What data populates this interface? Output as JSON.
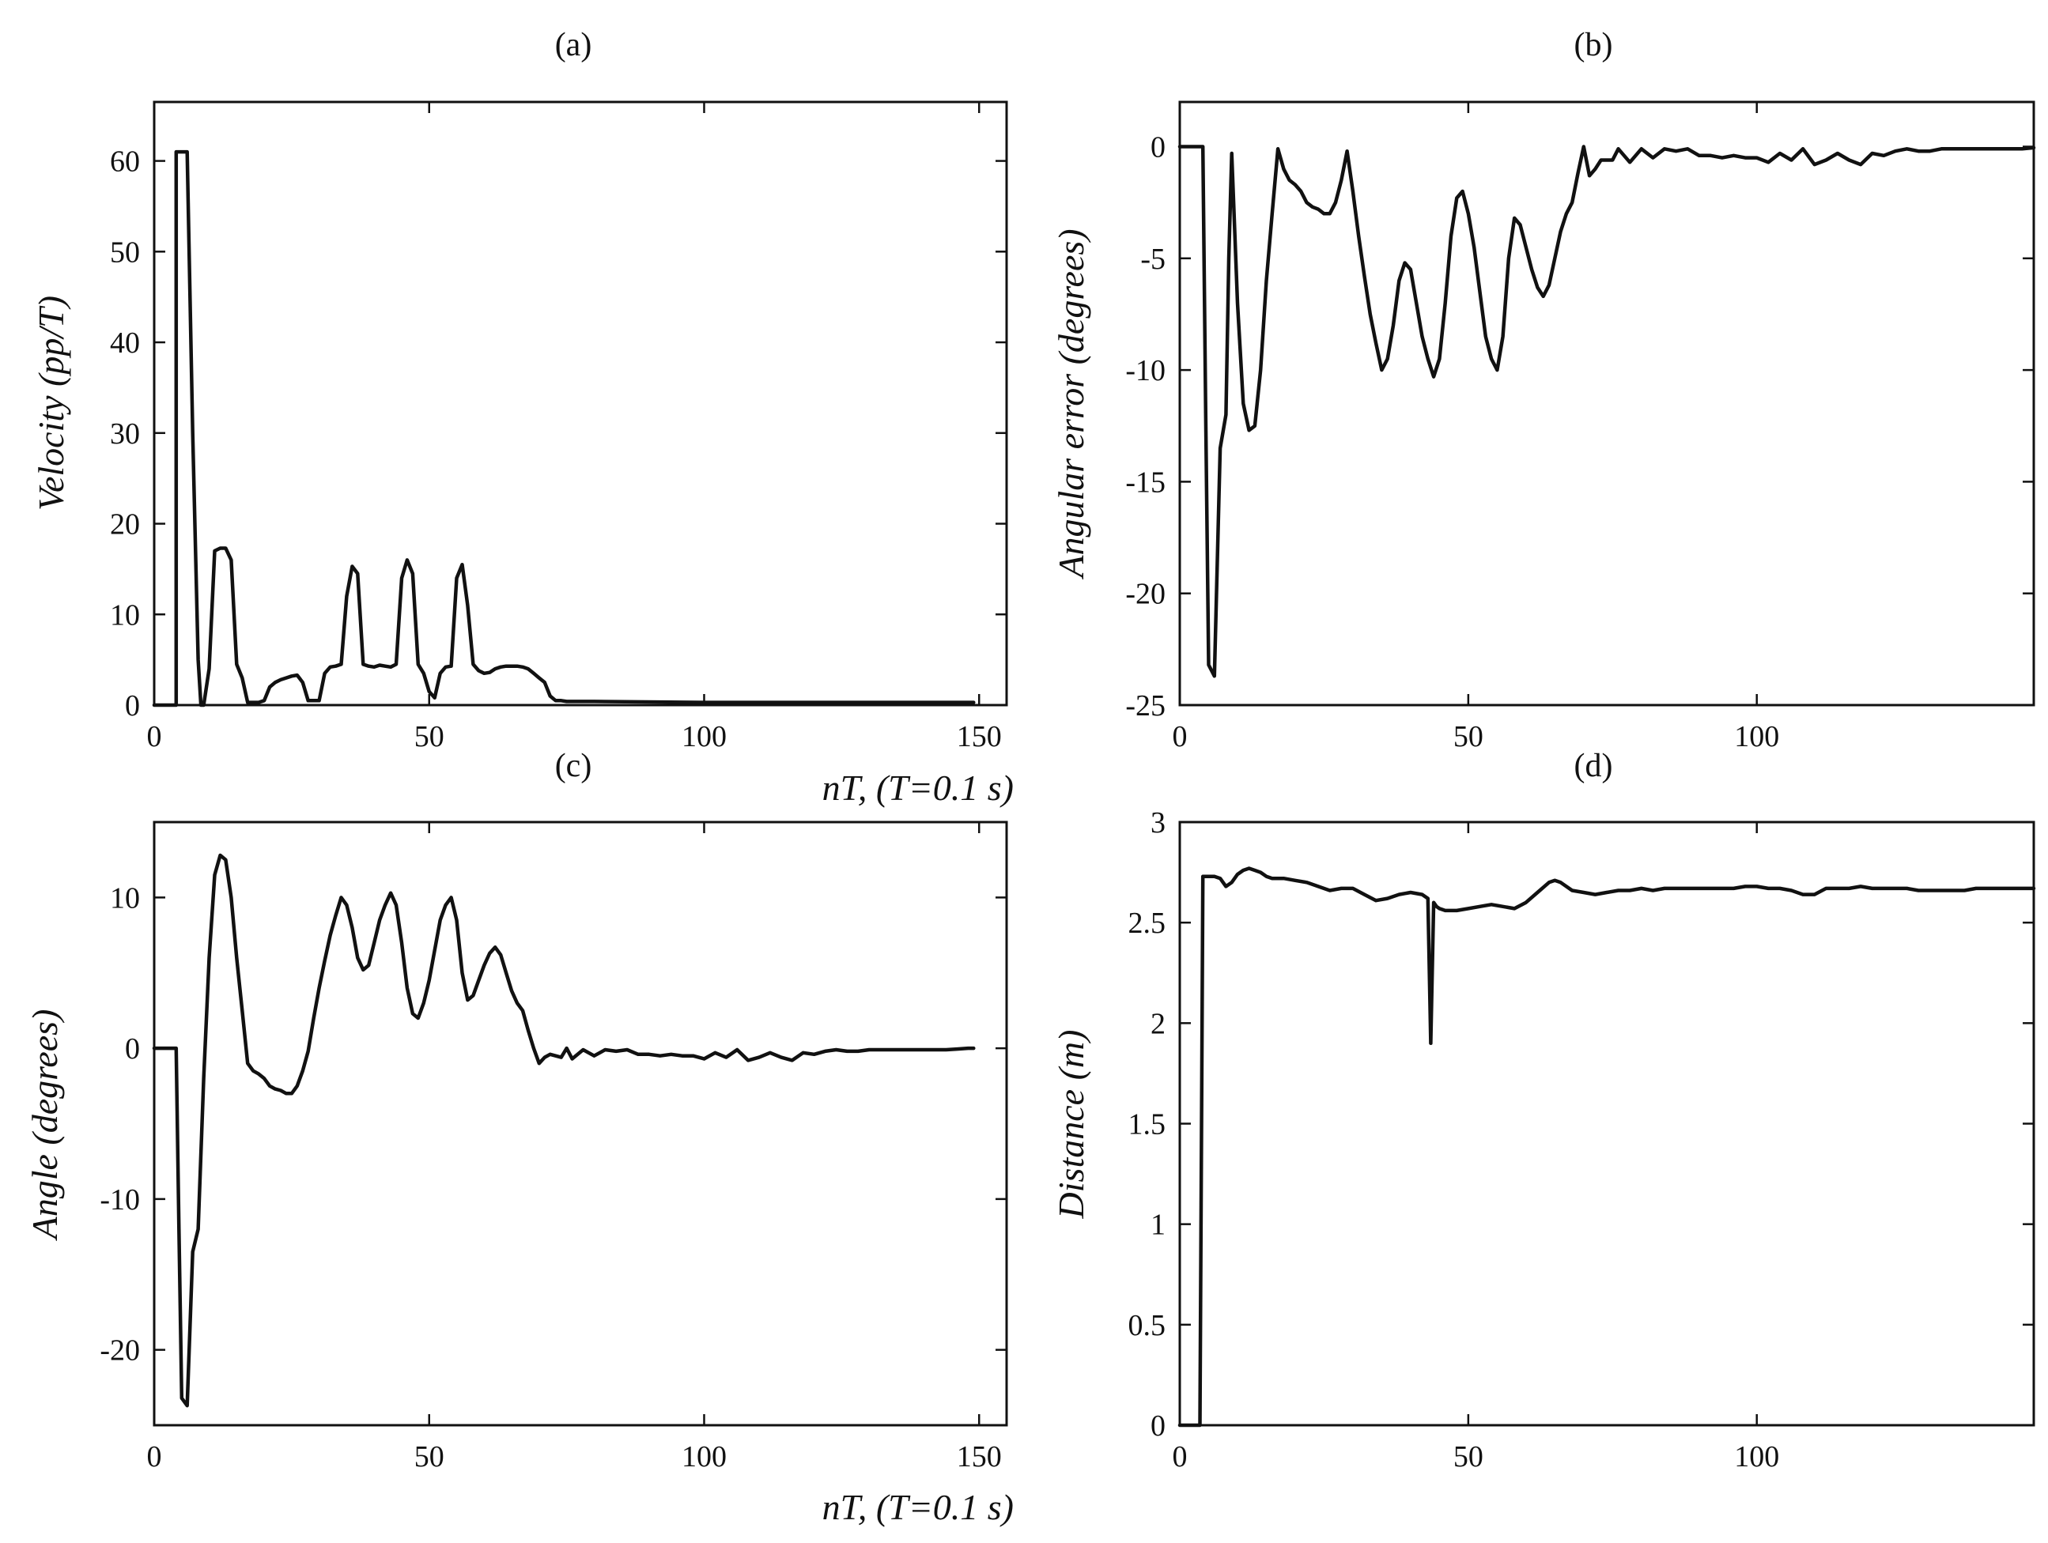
{
  "chart_data": [
    {
      "panel": "a",
      "type": "line",
      "title": "(a)",
      "xlabel": "nT, (T=0.1 s)",
      "ylabel": "Velocity (pp/T)",
      "xlim": [
        0,
        155
      ],
      "ylim": [
        0,
        66.5
      ],
      "xticks": [
        0,
        50,
        100,
        150
      ],
      "yticks": [
        0,
        10,
        20,
        30,
        40,
        50,
        60
      ],
      "grid": false,
      "line_color": "#111111",
      "x": [
        0,
        4,
        4,
        5,
        6,
        7,
        8,
        8.5,
        9,
        10,
        11,
        12,
        13,
        14,
        15,
        16,
        17,
        18,
        19,
        20,
        21,
        22,
        23,
        24,
        25,
        26,
        27,
        28,
        29,
        30,
        31,
        32,
        33,
        34,
        35,
        36,
        37,
        38,
        39,
        40,
        41,
        42,
        43,
        44,
        45,
        46,
        47,
        48,
        49,
        50,
        51,
        52,
        53,
        54,
        55,
        56,
        57,
        58,
        59,
        60,
        61,
        62,
        63,
        64,
        65,
        66,
        67,
        68,
        69,
        70,
        71,
        72,
        73,
        74,
        75,
        80,
        100,
        120,
        140,
        149
      ],
      "values": [
        0,
        0,
        61,
        61,
        61,
        30,
        5,
        0,
        0,
        4,
        17,
        17.3,
        17.3,
        16,
        4.5,
        3,
        0.3,
        0.3,
        0.3,
        0.5,
        2,
        2.5,
        2.8,
        3,
        3.2,
        3.3,
        2.5,
        0.5,
        0.5,
        0.5,
        3.5,
        4.2,
        4.3,
        4.5,
        12,
        15.3,
        14.5,
        4.5,
        4.3,
        4.2,
        4.4,
        4.3,
        4.2,
        4.5,
        14,
        16,
        14.5,
        4.5,
        3.5,
        1.5,
        0.8,
        3.5,
        4.2,
        4.3,
        14,
        15.5,
        11,
        4.5,
        3.8,
        3.5,
        3.6,
        4,
        4.2,
        4.3,
        4.3,
        4.3,
        4.2,
        4,
        3.5,
        3,
        2.5,
        1,
        0.5,
        0.5,
        0.4,
        0.4,
        0.3,
        0.3,
        0.3,
        0.3
      ]
    },
    {
      "panel": "b",
      "type": "line",
      "title": "(b)",
      "xlabel": "",
      "ylabel": "Angular error (degrees)",
      "xlim": [
        0,
        148
      ],
      "ylim": [
        -25,
        2
      ],
      "xticks": [
        0,
        50,
        100
      ],
      "yticks": [
        0,
        -5,
        -10,
        -15,
        -20,
        -25
      ],
      "grid": false,
      "line_color": "#111111",
      "x": [
        0,
        4,
        4.5,
        5,
        6,
        7,
        8,
        8.5,
        9,
        10,
        11,
        12,
        13,
        14,
        15,
        16,
        17,
        18,
        19,
        20,
        21,
        22,
        23,
        24,
        25,
        26,
        27,
        28,
        29,
        30,
        31,
        32,
        33,
        34,
        35,
        36,
        37,
        38,
        39,
        40,
        41,
        42,
        43,
        44,
        45,
        46,
        47,
        48,
        49,
        50,
        51,
        52,
        53,
        54,
        55,
        56,
        57,
        58,
        59,
        60,
        61,
        62,
        63,
        64,
        65,
        66,
        67,
        68,
        69,
        70,
        71,
        72,
        73,
        74,
        75,
        76,
        78,
        80,
        82,
        84,
        86,
        88,
        90,
        92,
        94,
        96,
        98,
        100,
        102,
        104,
        106,
        108,
        110,
        112,
        114,
        116,
        118,
        120,
        122,
        124,
        126,
        128,
        130,
        132,
        134,
        136,
        138,
        140,
        142,
        144,
        146,
        148
      ],
      "values": [
        0,
        0,
        -12,
        -23.2,
        -23.7,
        -13.5,
        -12,
        -5,
        -0.3,
        -7,
        -11.5,
        -12.7,
        -12.5,
        -10,
        -6,
        -3,
        -0.1,
        -1,
        -1.5,
        -1.7,
        -2,
        -2.5,
        -2.7,
        -2.8,
        -3,
        -3,
        -2.5,
        -1.5,
        -0.2,
        -2,
        -4,
        -5.8,
        -7.5,
        -8.8,
        -10,
        -9.5,
        -8,
        -6,
        -5.2,
        -5.5,
        -7,
        -8.5,
        -9.5,
        -10.3,
        -9.5,
        -7,
        -4,
        -2.3,
        -2,
        -3,
        -4.5,
        -6.5,
        -8.5,
        -9.5,
        -10,
        -8.5,
        -5,
        -3.2,
        -3.5,
        -4.5,
        -5.5,
        -6.3,
        -6.7,
        -6.2,
        -5,
        -3.8,
        -3,
        -2.5,
        -1.2,
        0,
        -1.3,
        -1,
        -0.6,
        -0.6,
        -0.6,
        -0.1,
        -0.7,
        -0.1,
        -0.5,
        -0.1,
        -0.2,
        -0.1,
        -0.4,
        -0.4,
        -0.5,
        -0.4,
        -0.5,
        -0.5,
        -0.7,
        -0.3,
        -0.6,
        -0.1,
        -0.8,
        -0.6,
        -0.3,
        -0.6,
        -0.8,
        -0.3,
        -0.4,
        -0.2,
        -0.1,
        -0.2,
        -0.2,
        -0.1,
        -0.1,
        -0.1,
        -0.1,
        -0.1,
        -0.1,
        -0.1,
        -0.1,
        -0.05
      ]
    },
    {
      "panel": "c",
      "type": "line",
      "title": "(c)",
      "xlabel": "nT, (T=0.1 s)",
      "ylabel": "Angle (degrees)",
      "xlim": [
        0,
        155
      ],
      "ylim": [
        -25,
        15
      ],
      "xticks": [
        0,
        50,
        100,
        150
      ],
      "yticks": [
        10,
        0,
        -10,
        -20
      ],
      "grid": false,
      "line_color": "#111111",
      "x": [
        0,
        4,
        4.5,
        5,
        6,
        7,
        8,
        9,
        10,
        11,
        12,
        13,
        14,
        15,
        16,
        17,
        18,
        19,
        20,
        21,
        22,
        23,
        24,
        25,
        26,
        27,
        28,
        29,
        30,
        31,
        32,
        33,
        34,
        35,
        36,
        37,
        38,
        39,
        40,
        41,
        42,
        43,
        44,
        45,
        46,
        47,
        48,
        49,
        50,
        51,
        52,
        53,
        54,
        55,
        56,
        57,
        58,
        59,
        60,
        61,
        62,
        63,
        64,
        65,
        66,
        67,
        68,
        69,
        70,
        71,
        72,
        73,
        74,
        75,
        76,
        78,
        80,
        82,
        84,
        86,
        88,
        90,
        92,
        94,
        96,
        98,
        100,
        102,
        104,
        106,
        108,
        110,
        112,
        114,
        116,
        118,
        120,
        122,
        124,
        126,
        128,
        130,
        132,
        134,
        136,
        138,
        140,
        142,
        144,
        146,
        148,
        149
      ],
      "values": [
        0,
        0,
        -12,
        -23.2,
        -23.7,
        -13.5,
        -12,
        -2,
        6,
        11.5,
        12.8,
        12.5,
        10,
        6,
        2.5,
        -1,
        -1.5,
        -1.7,
        -2,
        -2.5,
        -2.7,
        -2.8,
        -3,
        -3,
        -2.5,
        -1.5,
        -0.2,
        2,
        4,
        5.8,
        7.5,
        8.8,
        10,
        9.5,
        8,
        6,
        5.2,
        5.5,
        7,
        8.5,
        9.5,
        10.3,
        9.5,
        7,
        4,
        2.3,
        2,
        3,
        4.5,
        6.5,
        8.5,
        9.5,
        10,
        8.5,
        5,
        3.2,
        3.5,
        4.5,
        5.5,
        6.3,
        6.7,
        6.2,
        5,
        3.8,
        3,
        2.5,
        1.2,
        0,
        -1,
        -0.6,
        -0.4,
        -0.5,
        -0.6,
        0,
        -0.7,
        -0.1,
        -0.5,
        -0.1,
        -0.2,
        -0.1,
        -0.4,
        -0.4,
        -0.5,
        -0.4,
        -0.5,
        -0.5,
        -0.7,
        -0.3,
        -0.6,
        -0.1,
        -0.8,
        -0.6,
        -0.3,
        -0.6,
        -0.8,
        -0.3,
        -0.4,
        -0.2,
        -0.1,
        -0.2,
        -0.2,
        -0.1,
        -0.1,
        -0.1,
        -0.1,
        -0.1,
        -0.1,
        -0.1,
        -0.1,
        -0.05,
        0,
        0
      ]
    },
    {
      "panel": "d",
      "type": "line",
      "title": "(d)",
      "xlabel": "",
      "ylabel": "Distance (m)",
      "xlim": [
        0,
        148
      ],
      "ylim": [
        0,
        3
      ],
      "xticks": [
        0,
        50,
        100
      ],
      "yticks": [
        0,
        0.5,
        1,
        1.5,
        2,
        2.5,
        3
      ],
      "grid": false,
      "line_color": "#111111",
      "x": [
        0,
        3.5,
        4,
        5,
        6,
        7,
        8,
        9,
        10,
        11,
        12,
        13,
        14,
        15,
        16,
        18,
        20,
        22,
        24,
        26,
        28,
        30,
        32,
        34,
        36,
        38,
        40,
        42,
        43,
        43.5,
        44,
        44.5,
        45,
        46,
        48,
        50,
        52,
        54,
        56,
        58,
        60,
        62,
        64,
        65,
        66,
        68,
        70,
        72,
        74,
        76,
        78,
        80,
        82,
        84,
        86,
        88,
        90,
        92,
        94,
        96,
        98,
        100,
        102,
        104,
        106,
        108,
        110,
        112,
        114,
        116,
        118,
        120,
        122,
        124,
        126,
        128,
        130,
        132,
        134,
        136,
        138,
        140,
        142,
        144,
        146,
        148
      ],
      "values": [
        0,
        0,
        2.73,
        2.73,
        2.73,
        2.72,
        2.68,
        2.7,
        2.74,
        2.76,
        2.77,
        2.76,
        2.75,
        2.73,
        2.72,
        2.72,
        2.71,
        2.7,
        2.68,
        2.66,
        2.67,
        2.67,
        2.64,
        2.61,
        2.62,
        2.64,
        2.65,
        2.64,
        2.62,
        1.9,
        2.6,
        2.58,
        2.57,
        2.56,
        2.56,
        2.57,
        2.58,
        2.59,
        2.58,
        2.57,
        2.6,
        2.65,
        2.7,
        2.71,
        2.7,
        2.66,
        2.65,
        2.64,
        2.65,
        2.66,
        2.66,
        2.67,
        2.66,
        2.67,
        2.67,
        2.67,
        2.67,
        2.67,
        2.67,
        2.67,
        2.68,
        2.68,
        2.67,
        2.67,
        2.66,
        2.64,
        2.64,
        2.67,
        2.67,
        2.67,
        2.68,
        2.67,
        2.67,
        2.67,
        2.67,
        2.66,
        2.66,
        2.66,
        2.66,
        2.66,
        2.67,
        2.67,
        2.67,
        2.67,
        2.67,
        2.67
      ]
    }
  ]
}
